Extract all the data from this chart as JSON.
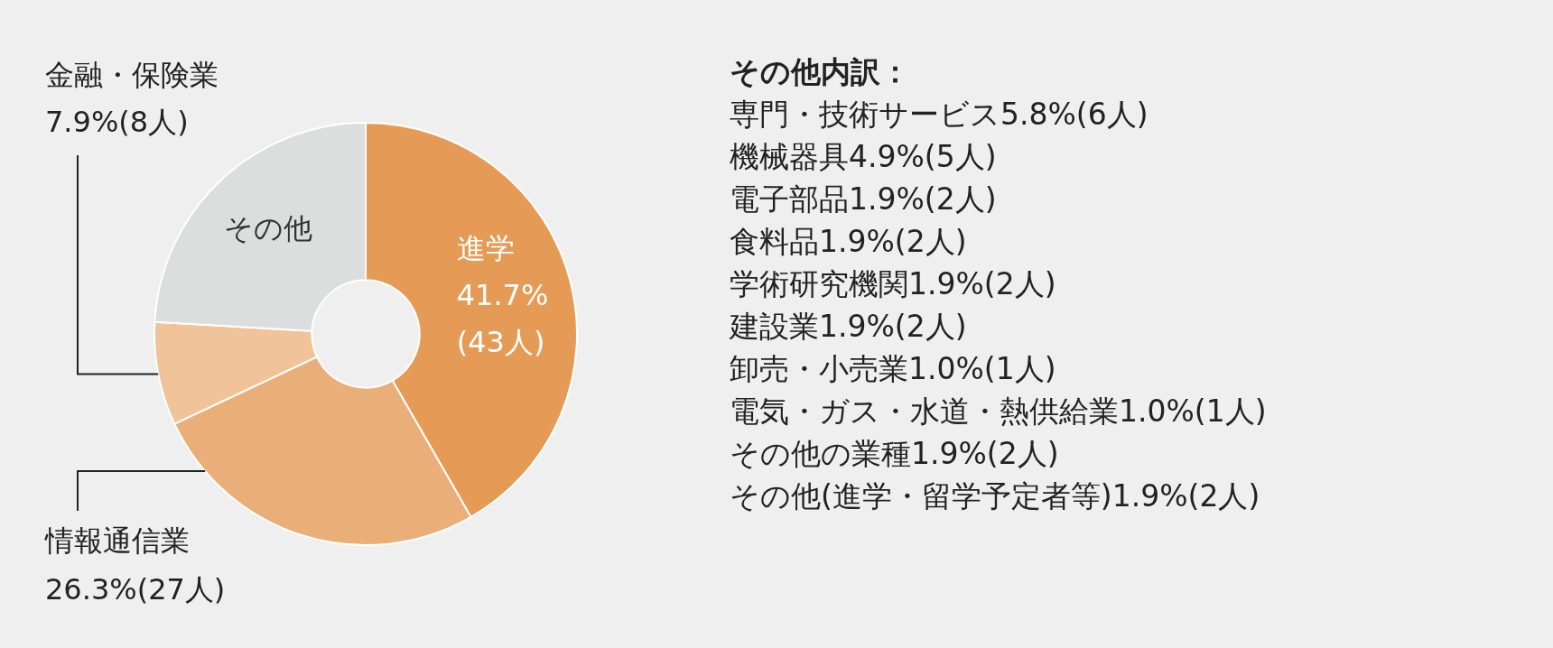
{
  "chart_data": {
    "type": "donut",
    "categories": [
      "進学",
      "情報通信業",
      "金融・保険業",
      "その他"
    ],
    "values": [
      41.7,
      26.3,
      7.9,
      24.1
    ],
    "colors": [
      "#e59b55",
      "#eaae78",
      "#f0c398",
      "#dcdddd"
    ],
    "value_labels": [
      "41.7%\n(43人)",
      "26.3%(27人)",
      "7.9%(8人)",
      null
    ],
    "legend": false,
    "annotations": [
      "その他内訳：",
      "専門・技術サービス5.8%(6人)",
      "機械器具4.9%(5人)",
      "電子部品1.9%(2人)",
      "食料品1.9%(2人)",
      "学術研究機関1.9%(2人)",
      "建設業1.9%(2人)",
      "卸売・小売業1.0%(1人)",
      "電気・ガス・水道・熱供給業1.0%(1人)",
      "その他の業種1.9%(2人)",
      "その他(進学・留学予定者等)1.9%(2人)"
    ]
  }
}
